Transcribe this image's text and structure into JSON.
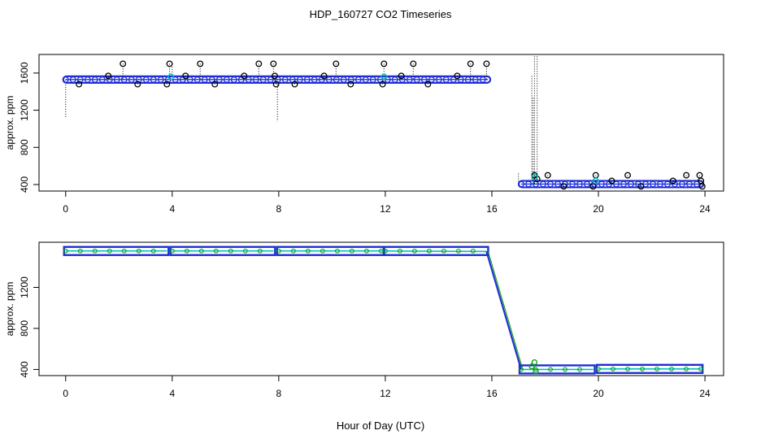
{
  "chart_data": {
    "title": "HDP_160727  CO2 Timeseries",
    "xlabel": "Hour of Day (UTC)",
    "colors": {
      "primary": "#1f2fd6",
      "secondary": "#00c0c0",
      "tertiary": "#00a000",
      "outlier": "#000000"
    },
    "panels": [
      {
        "type": "scatter",
        "ylabel": "approx. ppm",
        "xlim": [
          -1,
          24.7
        ],
        "ylim": [
          330,
          1800
        ],
        "xticks": [
          0,
          4,
          8,
          12,
          16,
          20,
          24
        ],
        "yticks": [
          400,
          800,
          1200,
          1600
        ],
        "segments": [
          {
            "x0": 0,
            "x1": 15.85,
            "y": 1530
          },
          {
            "x0": 17.1,
            "x1": 23.85,
            "y": 405
          }
        ],
        "points_high": [
          [
            0.5,
            1480
          ],
          [
            1.6,
            1570
          ],
          [
            2.15,
            1700
          ],
          [
            2.7,
            1480
          ],
          [
            3.8,
            1480
          ],
          [
            3.9,
            1700
          ],
          [
            4.5,
            1570
          ],
          [
            5.05,
            1700
          ],
          [
            5.6,
            1480
          ],
          [
            6.7,
            1570
          ],
          [
            7.25,
            1700
          ],
          [
            7.8,
            1700
          ],
          [
            7.85,
            1570
          ],
          [
            7.9,
            1480
          ],
          [
            8.6,
            1480
          ],
          [
            9.7,
            1570
          ],
          [
            10.15,
            1700
          ],
          [
            10.7,
            1480
          ],
          [
            11.9,
            1480
          ],
          [
            11.95,
            1700
          ],
          [
            12.6,
            1570
          ],
          [
            13.05,
            1700
          ],
          [
            13.6,
            1480
          ],
          [
            14.7,
            1570
          ],
          [
            15.2,
            1700
          ],
          [
            15.8,
            1700
          ]
        ],
        "points_low": [
          [
            17.6,
            500
          ],
          [
            17.7,
            460
          ],
          [
            18.1,
            500
          ],
          [
            18.7,
            380
          ],
          [
            19.8,
            380
          ],
          [
            19.9,
            500
          ],
          [
            20.5,
            440
          ],
          [
            21.1,
            500
          ],
          [
            21.6,
            380
          ],
          [
            22.8,
            440
          ],
          [
            23.3,
            500
          ],
          [
            23.8,
            500
          ],
          [
            23.85,
            440
          ],
          [
            23.9,
            380
          ]
        ],
        "spikes": [
          [
            0,
            1530,
            1110
          ],
          [
            7.95,
            1530,
            1080
          ],
          [
            4.0,
            1530,
            1700
          ],
          [
            17.0,
            405,
            520
          ],
          [
            17.5,
            405,
            1580
          ],
          [
            17.55,
            405,
            1350
          ],
          [
            17.6,
            405,
            1780
          ],
          [
            17.7,
            405,
            1800
          ]
        ]
      },
      {
        "type": "line",
        "ylabel": "approx. ppm",
        "xlim": [
          -1,
          24.7
        ],
        "ylim": [
          340,
          1640
        ],
        "xticks": [
          0,
          4,
          8,
          12,
          16,
          20,
          24
        ],
        "yticks": [
          400,
          800,
          1200
        ],
        "series": [
          {
            "x": [
              0,
              3.8
            ],
            "y": [
              1555,
              1555
            ]
          },
          {
            "x": [
              4.0,
              7.8
            ],
            "y": [
              1555,
              1555
            ]
          },
          {
            "x": [
              8.0,
              11.9
            ],
            "y": [
              1555,
              1555
            ]
          },
          {
            "x": [
              12.0,
              15.8
            ],
            "y": [
              1555,
              1550
            ]
          },
          {
            "x": [
              15.8,
              17.1
            ],
            "y": [
              1550,
              400
            ]
          },
          {
            "x": [
              17.1,
              19.8
            ],
            "y": [
              400,
              400
            ]
          },
          {
            "x": [
              20.0,
              23.85
            ],
            "y": [
              405,
              405
            ]
          }
        ],
        "glyph_points": [
          [
            17.5,
            430
          ],
          [
            17.6,
            470
          ],
          [
            17.65,
            380
          ]
        ]
      }
    ]
  }
}
